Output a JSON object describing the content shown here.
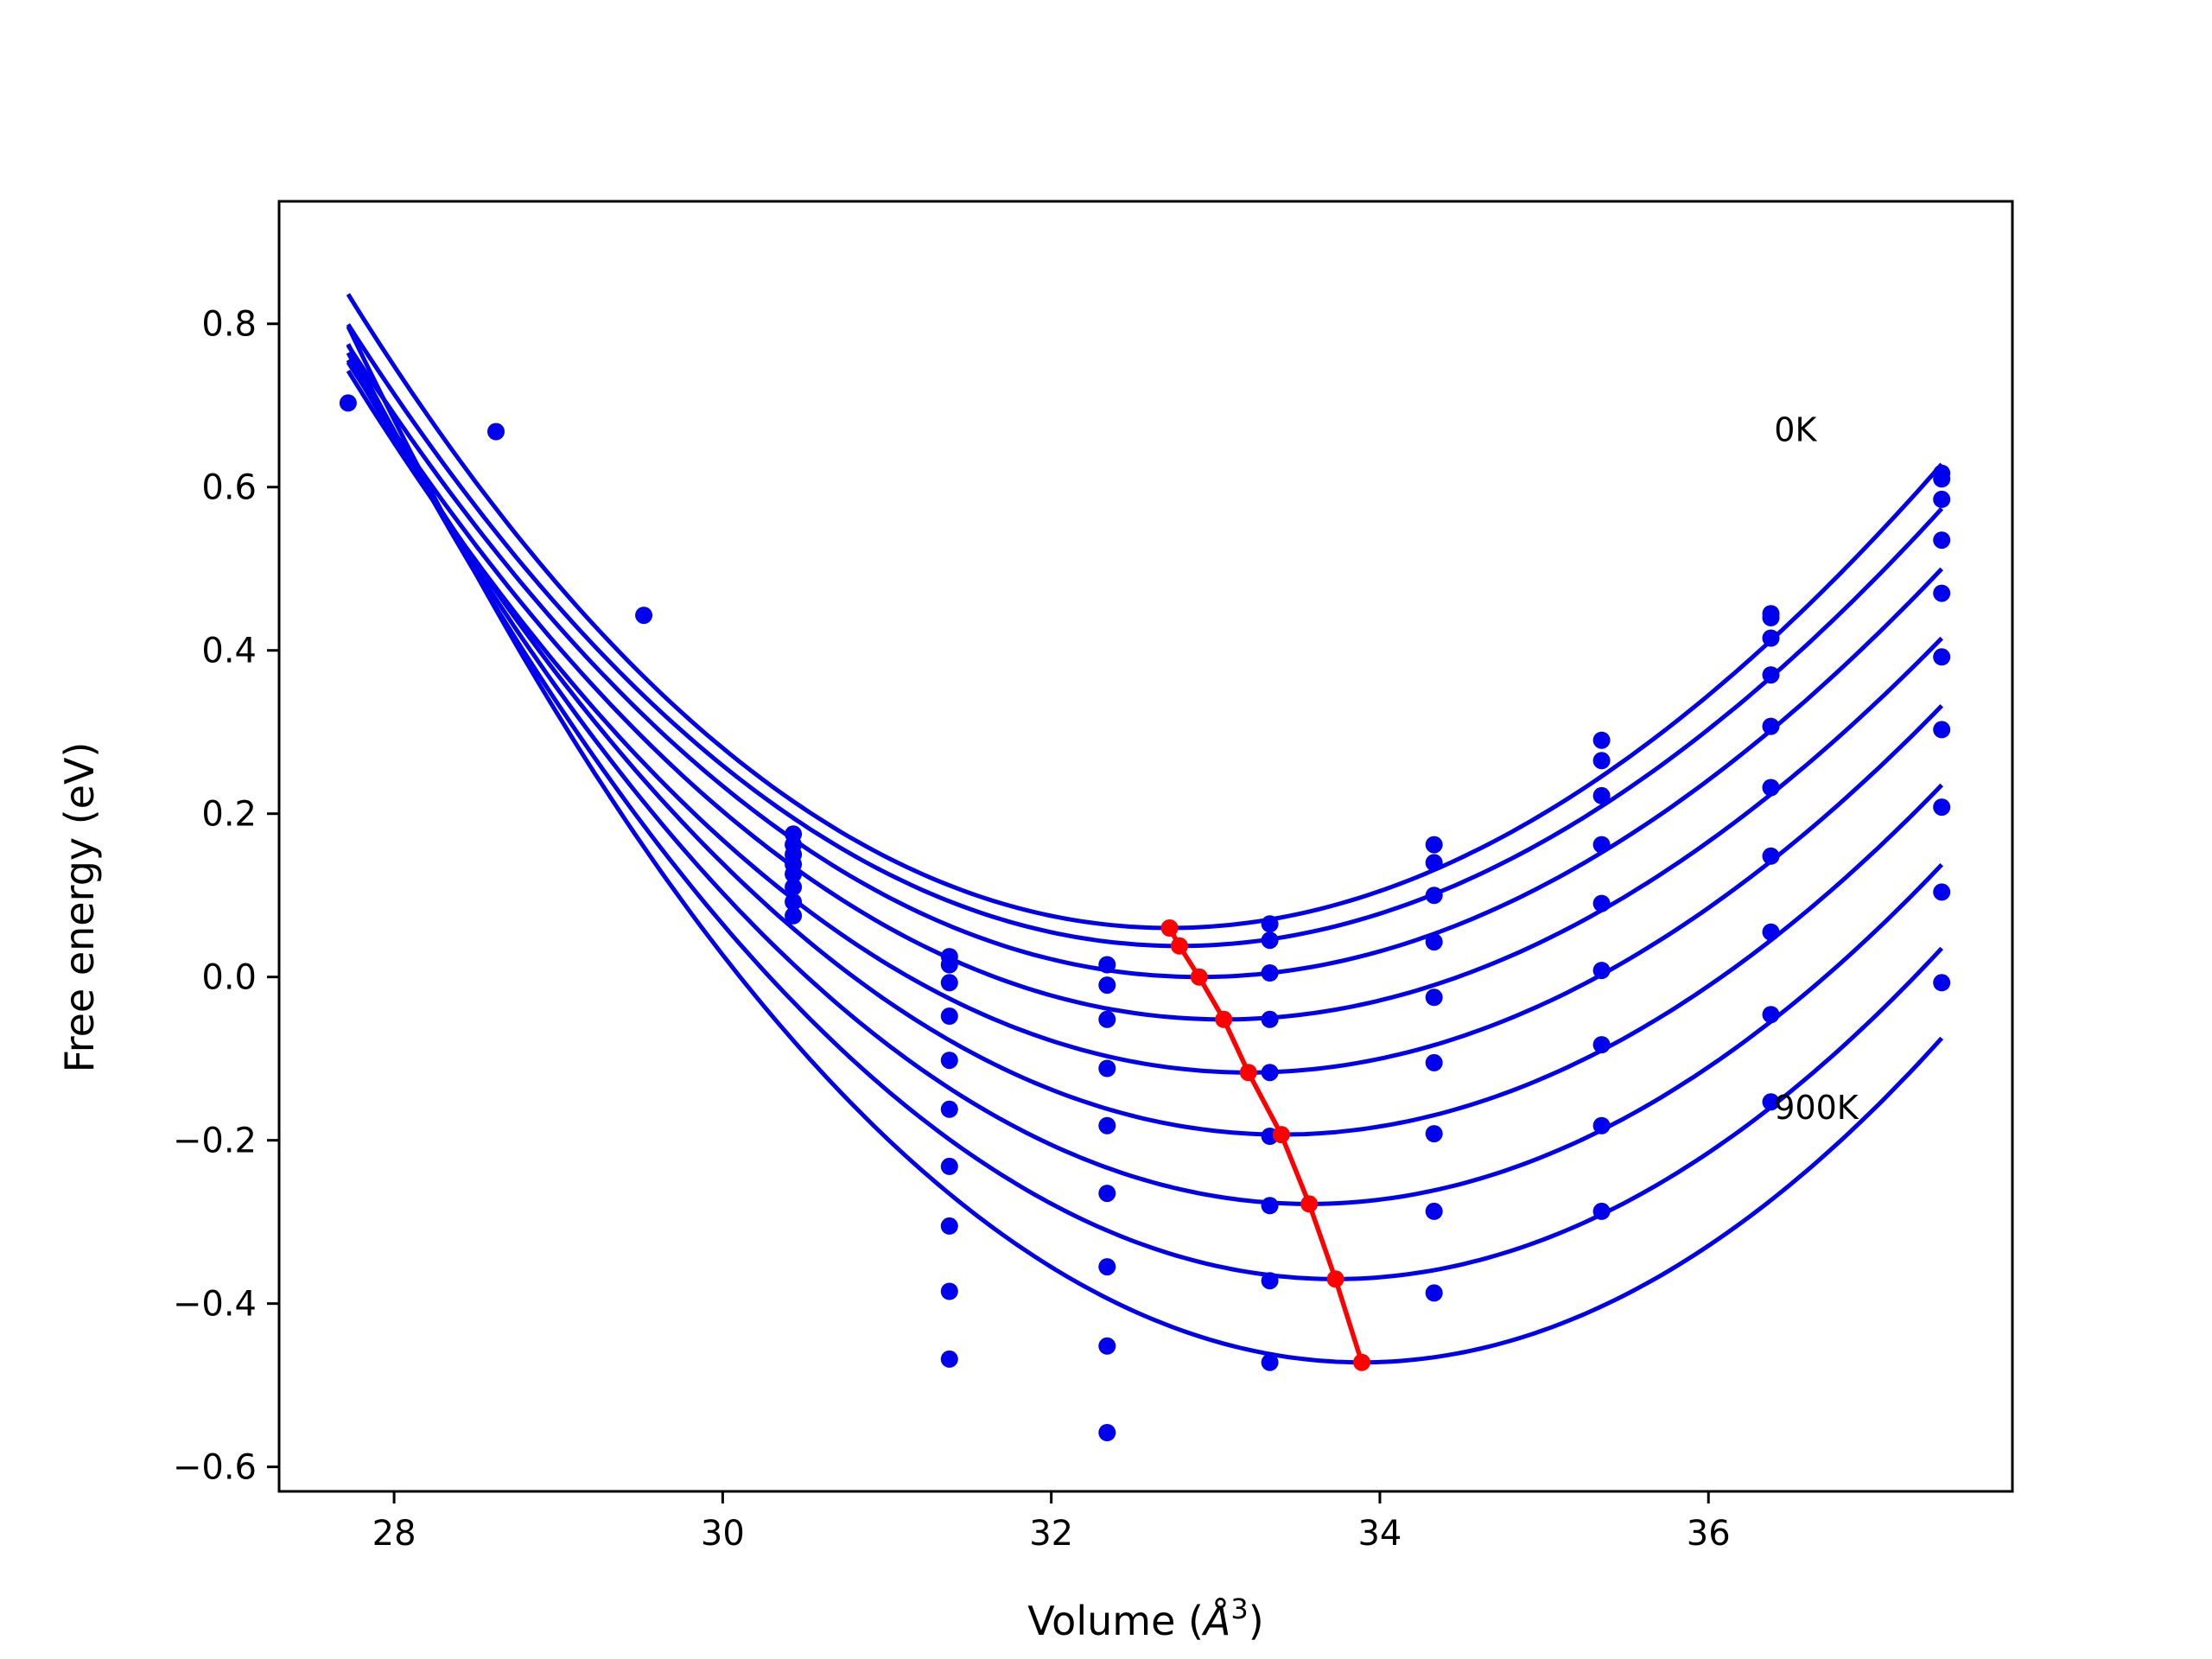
{
  "chart_data": {
    "type": "scatter",
    "title": "",
    "xlabel": "Volume (",
    "xlabel_unit": "Å",
    "xlabel_exp": "3",
    "xlabel_close": ")",
    "ylabel": "Free energy (eV)",
    "xlim": [
      27.3,
      37.85
    ],
    "ylim": [
      -0.63,
      0.95
    ],
    "xticks": [
      28,
      30,
      32,
      34,
      36
    ],
    "xtick_labels": [
      "28",
      "30",
      "32",
      "34",
      "36"
    ],
    "yticks": [
      -0.6,
      -0.4,
      -0.2,
      0.0,
      0.2,
      0.4,
      0.6,
      0.8
    ],
    "ytick_labels": [
      "−0.6",
      "−0.4",
      "−0.2",
      "0.0",
      "0.2",
      "0.4",
      "0.6",
      "0.8"
    ],
    "grid": false,
    "legend": "none",
    "colors": {
      "curves": "#0000ee",
      "points": "#0000ee",
      "minima": "#ff0000"
    },
    "annotations": [
      {
        "text": "0K",
        "x": 36.4,
        "y": 0.67
      },
      {
        "text": "900K",
        "x": 36.4,
        "y": -0.16
      }
    ],
    "fit_x_range": [
      27.72,
      37.42
    ],
    "fit_curves": [
      {
        "v0": 32.72,
        "e0": 0.06,
        "k": 0.0283,
        "p": -0.00055
      },
      {
        "v0": 32.78,
        "e0": 0.038,
        "k": 0.0272,
        "p": -0.0005
      },
      {
        "v0": 32.9,
        "e0": 0.0,
        "k": 0.0265,
        "p": -0.00045
      },
      {
        "v0": 33.05,
        "e0": -0.052,
        "k": 0.0262,
        "p": -0.0004
      },
      {
        "v0": 33.2,
        "e0": -0.117,
        "k": 0.0267,
        "p": -0.00035
      },
      {
        "v0": 33.4,
        "e0": -0.193,
        "k": 0.0277,
        "p": -0.0003
      },
      {
        "v0": 33.57,
        "e0": -0.278,
        "k": 0.029,
        "p": -0.00025
      },
      {
        "v0": 33.73,
        "e0": -0.37,
        "k": 0.0305,
        "p": -0.0002
      },
      {
        "v0": 33.89,
        "e0": -0.472,
        "k": 0.0324,
        "p": -0.00015
      }
    ],
    "minima_line": {
      "x": [
        32.72,
        32.78,
        32.9,
        33.05,
        33.2,
        33.4,
        33.57,
        33.73,
        33.89
      ],
      "y": [
        0.06,
        0.038,
        0.0,
        -0.052,
        -0.117,
        -0.193,
        -0.278,
        -0.37,
        -0.472
      ]
    },
    "scatter_points": [
      {
        "x": 27.72,
        "y": 0.703
      },
      {
        "x": 28.62,
        "y": 0.668
      },
      {
        "x": 29.52,
        "y": 0.443
      },
      {
        "x": 30.43,
        "y": [
          0.175,
          0.162,
          0.15,
          0.138,
          0.126,
          0.11,
          0.092,
          0.075
        ]
      },
      {
        "x": 31.38,
        "y": [
          0.025,
          0.015,
          -0.007,
          -0.048,
          -0.102,
          -0.162,
          -0.232,
          -0.305,
          -0.385,
          -0.468
        ]
      },
      {
        "x": 32.34,
        "y": [
          0.015,
          -0.01,
          -0.052,
          -0.112,
          -0.182,
          -0.265,
          -0.355,
          -0.452,
          -0.558
        ]
      },
      {
        "x": 33.33,
        "y": [
          0.065,
          0.045,
          0.005,
          -0.052,
          -0.117,
          -0.195,
          -0.28,
          -0.372,
          -0.472
        ]
      },
      {
        "x": 34.33,
        "y": [
          0.162,
          0.14,
          0.1,
          0.043,
          -0.025,
          -0.105,
          -0.192,
          -0.287,
          -0.387
        ]
      },
      {
        "x": 35.35,
        "y": [
          0.29,
          0.265,
          0.222,
          0.162,
          0.09,
          0.008,
          -0.083,
          -0.182,
          -0.287
        ]
      },
      {
        "x": 36.38,
        "y": [
          0.445,
          0.44,
          0.415,
          0.37,
          0.307,
          0.232,
          0.148,
          0.055,
          -0.046,
          -0.153
        ]
      },
      {
        "x": 37.42,
        "y": [
          0.617,
          0.61,
          0.585,
          0.535,
          0.47,
          0.392,
          0.303,
          0.208,
          0.104,
          -0.007
        ]
      }
    ]
  }
}
